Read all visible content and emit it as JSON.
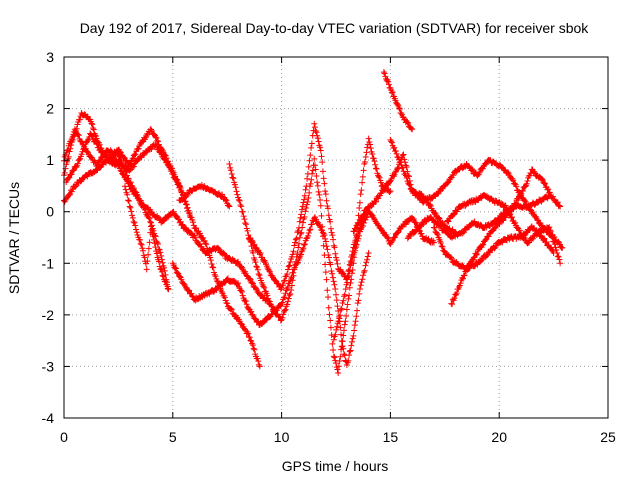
{
  "chart_data": {
    "type": "scatter",
    "title": "Day 192 of 2017, Sidereal Day-to-day VTEC variation (SDTVAR) for receiver sbok",
    "xlabel": "GPS time / hours",
    "ylabel": "SDTVAR / TECUs",
    "xlim": [
      0,
      25
    ],
    "ylim": [
      -4,
      3
    ],
    "xticks": [
      "0",
      "5",
      "10",
      "15",
      "20",
      "25"
    ],
    "yticks": [
      "-4",
      "-3",
      "-2",
      "-1",
      "0",
      "1",
      "2",
      "3"
    ],
    "grid": true,
    "legend": "none",
    "marker": "+",
    "color": "#ff0000",
    "series": [
      {
        "values": [
          [
            0.0,
            0.7
          ],
          [
            0.4,
            1.4
          ],
          [
            0.8,
            1.9
          ],
          [
            1.2,
            1.8
          ],
          [
            1.5,
            1.4
          ],
          [
            2.0,
            1.0
          ],
          [
            2.5,
            1.2
          ],
          [
            3.0,
            0.9
          ],
          [
            3.5,
            1.3
          ],
          [
            4.0,
            1.6
          ],
          [
            4.5,
            1.2
          ],
          [
            5.0,
            0.8
          ],
          [
            5.5,
            0.3
          ],
          [
            6.0,
            -0.3
          ],
          [
            6.5,
            -0.6
          ],
          [
            7.0,
            -1.3
          ],
          [
            7.5,
            -1.8
          ],
          [
            8.0,
            -2.1
          ],
          [
            8.5,
            -2.4
          ],
          [
            9.0,
            -3.0
          ]
        ]
      },
      {
        "values": [
          [
            0.0,
            1.0
          ],
          [
            0.5,
            1.6
          ],
          [
            1.0,
            1.2
          ],
          [
            1.5,
            0.9
          ],
          [
            2.0,
            1.2
          ],
          [
            2.5,
            1.1
          ],
          [
            3.0,
            0.6
          ],
          [
            3.5,
            0.2
          ],
          [
            4.0,
            -0.2
          ],
          [
            4.5,
            -0.9
          ],
          [
            4.8,
            -1.5
          ]
        ]
      },
      {
        "values": [
          [
            0.0,
            0.2
          ],
          [
            0.5,
            0.5
          ],
          [
            1.0,
            0.7
          ],
          [
            1.5,
            0.8
          ],
          [
            2.0,
            1.0
          ],
          [
            2.5,
            0.9
          ],
          [
            3.0,
            0.5
          ],
          [
            3.5,
            0.2
          ],
          [
            4.0,
            0.0
          ],
          [
            4.5,
            -0.2
          ],
          [
            5.0,
            0.0
          ],
          [
            5.5,
            -0.3
          ],
          [
            6.0,
            -0.5
          ],
          [
            6.5,
            -0.8
          ],
          [
            7.0,
            -0.7
          ],
          [
            7.5,
            -0.9
          ],
          [
            8.0,
            -1.0
          ],
          [
            8.5,
            -1.3
          ],
          [
            9.0,
            -1.6
          ],
          [
            9.5,
            -1.8
          ]
        ]
      },
      {
        "values": [
          [
            2.8,
            0.5
          ],
          [
            3.2,
            -0.2
          ],
          [
            3.6,
            -0.7
          ],
          [
            3.8,
            -1.1
          ],
          [
            4.0,
            -0.3
          ],
          [
            4.3,
            -0.9
          ],
          [
            4.6,
            -1.3
          ],
          [
            4.8,
            -1.5
          ]
        ]
      },
      {
        "values": [
          [
            5.0,
            -1.0
          ],
          [
            5.5,
            -1.4
          ],
          [
            6.0,
            -1.7
          ],
          [
            6.5,
            -1.6
          ],
          [
            7.0,
            -1.5
          ],
          [
            7.5,
            -1.3
          ],
          [
            8.0,
            -1.4
          ],
          [
            8.5,
            -1.9
          ],
          [
            9.0,
            -2.2
          ],
          [
            9.5,
            -2.0
          ],
          [
            10.0,
            -1.8
          ],
          [
            10.5,
            -1.2
          ],
          [
            11.0,
            -0.7
          ],
          [
            11.5,
            -0.1
          ],
          [
            12.0,
            -0.5
          ],
          [
            12.5,
            -1.6
          ],
          [
            12.8,
            -2.6
          ],
          [
            13.0,
            -3.0
          ],
          [
            13.3,
            -2.4
          ],
          [
            13.6,
            -1.5
          ],
          [
            14.0,
            -0.8
          ]
        ]
      },
      {
        "values": [
          [
            5.3,
            0.2
          ],
          [
            5.8,
            0.4
          ],
          [
            6.3,
            0.5
          ],
          [
            6.8,
            0.4
          ],
          [
            7.3,
            0.3
          ],
          [
            7.6,
            0.1
          ]
        ]
      },
      {
        "values": [
          [
            7.6,
            0.9
          ],
          [
            8.0,
            0.3
          ],
          [
            8.4,
            -0.3
          ],
          [
            8.8,
            -1.0
          ],
          [
            9.2,
            -1.5
          ],
          [
            9.6,
            -1.9
          ],
          [
            10.0,
            -2.1
          ],
          [
            10.4,
            -1.6
          ],
          [
            10.8,
            -0.6
          ],
          [
            11.2,
            0.2
          ],
          [
            11.5,
            1.0
          ],
          [
            11.8,
            0.1
          ],
          [
            12.0,
            -1.0
          ],
          [
            12.2,
            -2.0
          ],
          [
            12.4,
            -2.8
          ],
          [
            12.6,
            -3.1
          ],
          [
            12.8,
            -2.5
          ],
          [
            13.0,
            -1.9
          ],
          [
            13.3,
            -1.0
          ],
          [
            13.6,
            0.2
          ],
          [
            13.8,
            0.9
          ],
          [
            14.0,
            1.4
          ],
          [
            14.3,
            0.9
          ],
          [
            14.6,
            0.5
          ],
          [
            15.0,
            0.4
          ]
        ]
      },
      {
        "values": [
          [
            8.5,
            -0.5
          ],
          [
            9.0,
            -0.8
          ],
          [
            9.5,
            -1.2
          ],
          [
            10.0,
            -1.5
          ],
          [
            10.4,
            -1.0
          ],
          [
            10.8,
            -0.3
          ],
          [
            11.1,
            0.4
          ],
          [
            11.5,
            1.7
          ],
          [
            11.8,
            1.2
          ],
          [
            12.0,
            0.4
          ],
          [
            12.3,
            -0.4
          ],
          [
            12.6,
            -1.1
          ],
          [
            13.0,
            -1.3
          ],
          [
            13.3,
            -0.7
          ],
          [
            13.6,
            -0.3
          ],
          [
            14.0,
            0.1
          ]
        ]
      },
      {
        "values": [
          [
            12.4,
            -2.5
          ],
          [
            12.8,
            -1.8
          ],
          [
            13.2,
            -1.0
          ],
          [
            13.6,
            -0.4
          ],
          [
            14.0,
            0.0
          ],
          [
            14.5,
            -0.3
          ],
          [
            15.0,
            -0.6
          ],
          [
            15.5,
            -0.3
          ],
          [
            16.0,
            -0.1
          ],
          [
            16.5,
            -0.5
          ],
          [
            17.0,
            -0.6
          ]
        ]
      },
      {
        "values": [
          [
            13.3,
            -0.4
          ],
          [
            13.8,
            0.0
          ],
          [
            14.3,
            0.2
          ],
          [
            14.8,
            0.5
          ],
          [
            15.3,
            0.8
          ],
          [
            15.6,
            1.1
          ],
          [
            16.0,
            0.4
          ],
          [
            16.5,
            0.3
          ],
          [
            17.0,
            0.0
          ],
          [
            17.5,
            -0.3
          ],
          [
            18.0,
            -0.4
          ]
        ]
      },
      {
        "values": [
          [
            14.7,
            2.7
          ],
          [
            15.0,
            2.4
          ],
          [
            15.3,
            2.1
          ],
          [
            15.6,
            1.8
          ],
          [
            16.0,
            1.6
          ]
        ]
      },
      {
        "values": [
          [
            15.0,
            1.4
          ],
          [
            15.5,
            0.9
          ],
          [
            16.0,
            0.4
          ],
          [
            16.5,
            0.2
          ],
          [
            17.0,
            0.3
          ],
          [
            17.5,
            0.5
          ],
          [
            18.0,
            0.8
          ],
          [
            18.5,
            0.9
          ],
          [
            19.0,
            0.7
          ],
          [
            19.5,
            1.0
          ],
          [
            20.0,
            0.9
          ],
          [
            20.5,
            0.7
          ],
          [
            21.0,
            0.3
          ],
          [
            21.5,
            0.0
          ],
          [
            22.0,
            -0.3
          ],
          [
            22.5,
            -0.5
          ],
          [
            22.9,
            -0.7
          ]
        ]
      },
      {
        "values": [
          [
            15.8,
            -0.5
          ],
          [
            16.3,
            -0.3
          ],
          [
            16.8,
            -0.1
          ],
          [
            17.3,
            -0.3
          ],
          [
            17.8,
            -0.5
          ],
          [
            18.3,
            -0.4
          ],
          [
            18.8,
            -0.2
          ],
          [
            19.3,
            -0.3
          ],
          [
            19.8,
            -0.2
          ],
          [
            20.3,
            0.0
          ],
          [
            20.8,
            0.1
          ],
          [
            21.3,
            0.1
          ],
          [
            21.8,
            0.2
          ],
          [
            22.3,
            0.3
          ]
        ]
      },
      {
        "values": [
          [
            17.0,
            -0.3
          ],
          [
            17.5,
            -0.8
          ],
          [
            18.0,
            -1.0
          ],
          [
            18.5,
            -1.1
          ],
          [
            19.0,
            -1.0
          ],
          [
            19.5,
            -0.8
          ],
          [
            20.0,
            -0.6
          ],
          [
            20.5,
            -0.5
          ],
          [
            21.0,
            -0.5
          ],
          [
            21.5,
            -0.3
          ],
          [
            22.0,
            -0.5
          ],
          [
            22.5,
            -0.8
          ]
        ]
      },
      {
        "values": [
          [
            17.8,
            -1.8
          ],
          [
            18.3,
            -1.3
          ],
          [
            18.8,
            -0.9
          ],
          [
            19.3,
            -0.6
          ],
          [
            19.8,
            -0.3
          ],
          [
            20.3,
            -0.1
          ],
          [
            20.8,
            0.2
          ],
          [
            21.2,
            0.5
          ],
          [
            21.5,
            0.8
          ],
          [
            22.0,
            0.6
          ],
          [
            22.4,
            0.3
          ],
          [
            22.8,
            0.1
          ]
        ]
      },
      {
        "values": [
          [
            17.6,
            -0.2
          ],
          [
            18.2,
            0.1
          ],
          [
            18.8,
            0.2
          ],
          [
            19.3,
            0.3
          ],
          [
            19.8,
            0.2
          ],
          [
            20.3,
            0.1
          ],
          [
            20.8,
            -0.3
          ],
          [
            21.3,
            -0.6
          ],
          [
            21.8,
            -0.4
          ],
          [
            22.3,
            -0.3
          ],
          [
            22.8,
            -1.0
          ]
        ]
      },
      {
        "values": [
          [
            0.1,
            0.6
          ],
          [
            0.6,
            0.9
          ],
          [
            1.2,
            1.5
          ],
          [
            1.8,
            1.1
          ],
          [
            2.4,
            1.0
          ],
          [
            3.0,
            0.8
          ],
          [
            3.6,
            1.1
          ],
          [
            4.2,
            1.3
          ],
          [
            4.8,
            0.9
          ],
          [
            5.4,
            0.4
          ],
          [
            5.8,
            -0.1
          ]
        ]
      }
    ]
  }
}
